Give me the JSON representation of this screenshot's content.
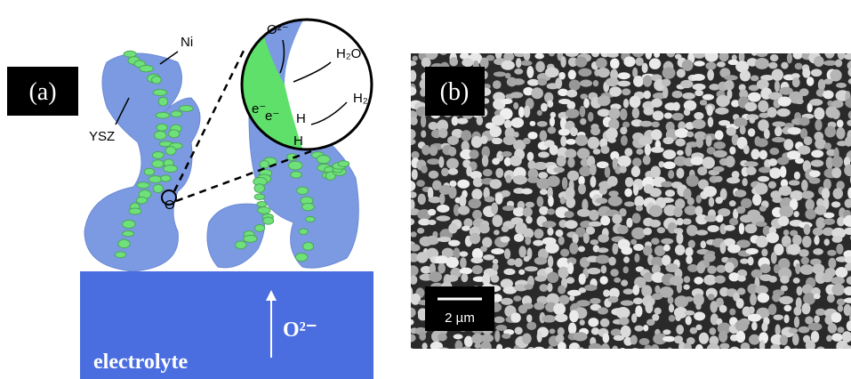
{
  "panel_a": {
    "label": "(a)",
    "ni_label": "Ni",
    "ysz_label": "YSZ",
    "point_label": "O",
    "zoom": {
      "oxide_ion": "O²⁻",
      "water": "H₂O",
      "hydrogen": "H₂",
      "h_atom_1": "H",
      "h_atom_2": "H",
      "electron_1": "e⁻",
      "electron_2": "e⁻"
    },
    "electrolyte_label": "electrolyte",
    "ion_flow_label": "O²⁻"
  },
  "panel_b": {
    "label": "(b)",
    "scale_bar": "2 µm"
  }
}
